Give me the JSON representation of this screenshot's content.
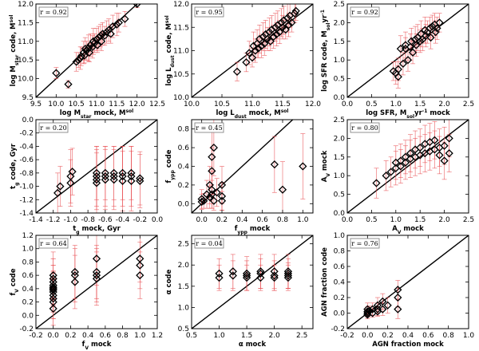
{
  "chart_data": [
    {
      "type": "scatter",
      "r_label": "r = 0.92",
      "xlabel": [
        "log M",
        "star",
        " mock, M",
        "sol",
        ""
      ],
      "ylabel": [
        "log M",
        "star",
        " code, M",
        "sol",
        ""
      ],
      "xlim": [
        9.5,
        12.5
      ],
      "ylim": [
        9.5,
        12.0
      ],
      "xticks": [
        9.5,
        10.0,
        10.5,
        11.0,
        11.5,
        12.0,
        12.5
      ],
      "yticks": [
        9.5,
        10.0,
        10.5,
        11.0,
        11.5,
        12.0
      ],
      "decimals": 1,
      "x": [
        10.0,
        10.3,
        10.5,
        10.55,
        10.6,
        10.62,
        10.68,
        10.7,
        10.72,
        10.75,
        10.8,
        10.82,
        10.85,
        10.9,
        10.92,
        10.95,
        11.0,
        11.02,
        11.05,
        11.1,
        11.12,
        11.15,
        11.2,
        11.25,
        11.3,
        11.35,
        11.4,
        11.5,
        11.55,
        11.7,
        12.0
      ],
      "y": [
        10.15,
        9.85,
        10.45,
        10.5,
        10.55,
        10.6,
        10.7,
        10.62,
        10.8,
        10.75,
        10.82,
        10.7,
        10.9,
        10.85,
        11.0,
        10.95,
        11.05,
        10.9,
        11.1,
        11.15,
        11.0,
        11.2,
        11.15,
        11.25,
        11.3,
        11.2,
        11.4,
        11.45,
        11.5,
        11.6,
        12.0
      ],
      "yerr": [
        0.15,
        0.1,
        0.25,
        0.2,
        0.3,
        0.25,
        0.3,
        0.2,
        0.3,
        0.25,
        0.35,
        0.25,
        0.3,
        0.3,
        0.35,
        0.25,
        0.3,
        0.2,
        0.3,
        0.3,
        0.25,
        0.3,
        0.25,
        0.3,
        0.3,
        0.25,
        0.3,
        0.3,
        0.25,
        0.2,
        0.1
      ]
    },
    {
      "type": "scatter",
      "r_label": "r = 0.95",
      "xlabel": [
        "log L",
        "dust",
        " mock, M",
        "sol",
        ""
      ],
      "ylabel": [
        "log L",
        "dust",
        " code, M",
        "sol",
        ""
      ],
      "xlim": [
        10.0,
        12.0
      ],
      "ylim": [
        10.0,
        12.0
      ],
      "xticks": [
        10.0,
        10.5,
        11.0,
        11.5,
        12.0
      ],
      "yticks": [
        10.0,
        10.5,
        11.0,
        11.5,
        12.0
      ],
      "decimals": 1,
      "x": [
        10.75,
        10.9,
        10.95,
        11.0,
        11.02,
        11.05,
        11.08,
        11.1,
        11.12,
        11.15,
        11.18,
        11.2,
        11.22,
        11.25,
        11.28,
        11.3,
        11.32,
        11.35,
        11.38,
        11.4,
        11.42,
        11.45,
        11.48,
        11.5,
        11.52,
        11.55,
        11.58,
        11.6,
        11.62,
        11.65,
        11.7,
        11.72
      ],
      "y": [
        10.55,
        10.75,
        10.95,
        10.85,
        11.1,
        11.0,
        11.15,
        11.05,
        11.25,
        11.1,
        11.3,
        11.15,
        11.35,
        11.25,
        11.4,
        11.2,
        11.45,
        11.3,
        11.5,
        11.35,
        11.55,
        11.4,
        11.6,
        11.5,
        11.65,
        11.45,
        11.7,
        11.55,
        11.75,
        11.6,
        11.8,
        11.85
      ],
      "yerr": [
        0.2,
        0.2,
        0.25,
        0.2,
        0.3,
        0.25,
        0.3,
        0.2,
        0.3,
        0.25,
        0.3,
        0.25,
        0.3,
        0.25,
        0.3,
        0.2,
        0.3,
        0.25,
        0.3,
        0.25,
        0.3,
        0.25,
        0.3,
        0.25,
        0.3,
        0.2,
        0.3,
        0.25,
        0.25,
        0.2,
        0.2,
        0.2
      ]
    },
    {
      "type": "scatter",
      "r_label": "r = 0.92",
      "xlabel": [
        "log SFR, M",
        "sol",
        "yr",
        "-1",
        " mock"
      ],
      "ylabel": [
        "log SFR code, M",
        "sol",
        "yr",
        "-1",
        ""
      ],
      "xlim": [
        0.0,
        2.5
      ],
      "ylim": [
        0.0,
        2.5
      ],
      "xticks": [
        0.0,
        0.5,
        1.0,
        1.5,
        2.0,
        2.5
      ],
      "yticks": [
        0.0,
        0.5,
        1.0,
        1.5,
        2.0,
        2.5
      ],
      "decimals": 1,
      "x": [
        0.95,
        1.0,
        1.05,
        1.1,
        1.15,
        1.2,
        1.25,
        1.3,
        1.32,
        1.35,
        1.4,
        1.42,
        1.45,
        1.5,
        1.52,
        1.55,
        1.6,
        1.62,
        1.65,
        1.7,
        1.72,
        1.75,
        1.8,
        1.82,
        1.85,
        1.9,
        1.05,
        1.2
      ],
      "y": [
        0.7,
        0.65,
        0.55,
        1.3,
        0.9,
        1.4,
        1.0,
        1.35,
        1.5,
        1.2,
        1.55,
        1.4,
        1.6,
        1.5,
        1.7,
        1.55,
        1.8,
        1.65,
        1.75,
        1.85,
        1.6,
        1.9,
        1.95,
        1.75,
        1.85,
        2.0,
        0.75,
        1.3
      ],
      "yerr": [
        0.25,
        0.3,
        0.3,
        0.35,
        0.3,
        0.35,
        0.3,
        0.35,
        0.35,
        0.3,
        0.35,
        0.3,
        0.35,
        0.3,
        0.35,
        0.3,
        0.35,
        0.3,
        0.3,
        0.3,
        0.3,
        0.3,
        0.3,
        0.3,
        0.3,
        0.25,
        0.3,
        0.3
      ]
    },
    {
      "type": "scatter",
      "r_label": "r = 0.20",
      "xlabel": [
        "t",
        "g",
        " mock, Gyr",
        "",
        ""
      ],
      "ylabel": [
        "t",
        "g",
        " code, Gyr",
        "",
        ""
      ],
      "xlim": [
        -1.4,
        0.0
      ],
      "ylim": [
        -1.4,
        0.0
      ],
      "xticks": [
        -1.4,
        -1.2,
        -1.0,
        -0.8,
        -0.6,
        -0.4,
        -0.2,
        0.0
      ],
      "yticks": [
        -1.4,
        -1.2,
        -1.0,
        -0.8,
        -0.6,
        -0.4,
        -0.2,
        0.0
      ],
      "decimals": 1,
      "x": [
        -1.15,
        -1.12,
        -1.0,
        -1.0,
        -0.98,
        -0.7,
        -0.7,
        -0.7,
        -0.7,
        -0.6,
        -0.6,
        -0.6,
        -0.5,
        -0.5,
        -0.5,
        -0.4,
        -0.4,
        -0.4,
        -0.3,
        -0.3,
        -0.3,
        -0.2,
        -0.2
      ],
      "y": [
        -1.1,
        -1.0,
        -0.95,
        -0.85,
        -0.78,
        -0.9,
        -0.85,
        -0.8,
        -0.95,
        -0.85,
        -0.8,
        -0.9,
        -0.85,
        -0.8,
        -0.9,
        -0.85,
        -0.8,
        -0.92,
        -0.85,
        -0.8,
        -0.92,
        -0.88,
        -0.92
      ],
      "yerr": [
        0.3,
        0.3,
        0.35,
        0.4,
        0.35,
        0.45,
        0.45,
        0.4,
        0.45,
        0.45,
        0.4,
        0.45,
        0.45,
        0.4,
        0.45,
        0.45,
        0.4,
        0.45,
        0.45,
        0.4,
        0.45,
        0.4,
        0.4
      ]
    },
    {
      "type": "scatter",
      "r_label": "r = 0.45",
      "xlabel": [
        "f",
        "ypp",
        " mock",
        "",
        ""
      ],
      "ylabel": [
        "f",
        "ypp",
        " code",
        "",
        ""
      ],
      "xlim": [
        -0.1,
        1.1
      ],
      "ylim": [
        -0.1,
        0.9
      ],
      "xticks": [
        0.0,
        0.2,
        0.4,
        0.6,
        0.8,
        1.0
      ],
      "yticks": [
        0.0,
        0.2,
        0.4,
        0.6,
        0.8
      ],
      "decimals": 1,
      "x": [
        0.0,
        0.0,
        0.02,
        0.05,
        0.08,
        0.08,
        0.1,
        0.1,
        0.12,
        0.1,
        0.15,
        0.1,
        0.2,
        0.2,
        0.2,
        0.12,
        0.72,
        0.8,
        1.0
      ],
      "y": [
        0.02,
        0.05,
        0.03,
        0.1,
        0.07,
        0.2,
        0.15,
        0.1,
        0.03,
        0.35,
        0.12,
        0.5,
        0.2,
        0.08,
        0.03,
        0.6,
        0.42,
        0.15,
        0.4
      ],
      "yerr": [
        0.08,
        0.1,
        0.08,
        0.15,
        0.12,
        0.2,
        0.2,
        0.15,
        0.1,
        0.25,
        0.15,
        0.3,
        0.2,
        0.15,
        0.1,
        0.3,
        0.3,
        0.3,
        0.35
      ]
    },
    {
      "type": "scatter",
      "r_label": "r = 0.80",
      "xlabel": [
        "A",
        "V",
        " mock",
        "",
        ""
      ],
      "ylabel": [
        "A",
        "V",
        " mock",
        "",
        ""
      ],
      "xlim": [
        0.0,
        2.5
      ],
      "ylim": [
        0.0,
        2.5
      ],
      "xticks": [
        0.0,
        0.5,
        1.0,
        1.5,
        2.0,
        2.5
      ],
      "yticks": [
        0.0,
        0.5,
        1.0,
        1.5,
        2.0,
        2.5
      ],
      "decimals": 1,
      "x": [
        0.6,
        0.8,
        0.9,
        1.0,
        1.0,
        1.1,
        1.1,
        1.2,
        1.2,
        1.3,
        1.3,
        1.4,
        1.4,
        1.5,
        1.5,
        1.6,
        1.6,
        1.7,
        1.7,
        1.8,
        1.8,
        1.9,
        1.9,
        2.0,
        2.0,
        2.1,
        2.1
      ],
      "y": [
        0.8,
        1.0,
        1.1,
        1.2,
        1.35,
        1.25,
        1.4,
        1.35,
        1.5,
        1.45,
        1.6,
        1.5,
        1.7,
        1.55,
        1.75,
        1.6,
        1.85,
        1.65,
        1.9,
        1.7,
        1.95,
        1.75,
        1.55,
        1.8,
        1.4,
        2.0,
        1.6
      ],
      "yerr": [
        0.4,
        0.4,
        0.4,
        0.45,
        0.45,
        0.45,
        0.45,
        0.45,
        0.45,
        0.5,
        0.5,
        0.5,
        0.5,
        0.5,
        0.5,
        0.5,
        0.5,
        0.5,
        0.5,
        0.5,
        0.5,
        0.5,
        0.5,
        0.5,
        0.5,
        0.5,
        0.5
      ]
    },
    {
      "type": "scatter",
      "r_label": "r = 0.64",
      "xlabel": [
        "f",
        "V",
        " mock",
        "",
        ""
      ],
      "ylabel": [
        "f",
        "V",
        " code",
        "",
        ""
      ],
      "xlim": [
        -0.2,
        1.2
      ],
      "ylim": [
        -0.2,
        1.2
      ],
      "xticks": [
        -0.2,
        0.0,
        0.2,
        0.4,
        0.6,
        0.8,
        1.0,
        1.2
      ],
      "yticks": [
        -0.2,
        0.0,
        0.2,
        0.4,
        0.6,
        0.8,
        1.0,
        1.2
      ],
      "decimals": 1,
      "x": [
        0.0,
        0.0,
        0.0,
        0.0,
        0.0,
        0.0,
        0.0,
        0.0,
        0.0,
        0.0,
        0.0,
        0.0,
        0.25,
        0.25,
        0.25,
        0.5,
        0.5,
        0.5,
        0.5,
        1.0,
        1.0,
        1.0
      ],
      "y": [
        0.1,
        0.2,
        0.25,
        0.3,
        0.35,
        0.4,
        0.45,
        0.5,
        0.55,
        0.6,
        0.38,
        0.42,
        0.5,
        0.6,
        0.65,
        0.55,
        0.6,
        0.65,
        0.85,
        0.6,
        0.75,
        0.85
      ],
      "yerr": [
        0.3,
        0.35,
        0.3,
        0.35,
        0.3,
        0.35,
        0.3,
        0.35,
        0.3,
        0.35,
        0.25,
        0.25,
        0.4,
        0.4,
        0.4,
        0.4,
        0.4,
        0.4,
        0.4,
        0.35,
        0.35,
        0.35
      ]
    },
    {
      "type": "scatter",
      "r_label": "r = 0.04",
      "xlabel": [
        "α mock",
        "",
        "",
        "",
        ""
      ],
      "ylabel": [
        "α code",
        "",
        "",
        "",
        ""
      ],
      "xlim": [
        0.5,
        2.7
      ],
      "ylim": [
        0.5,
        2.7
      ],
      "xticks": [
        0.5,
        1.0,
        1.5,
        2.0,
        2.5
      ],
      "yticks": [
        0.5,
        1.0,
        1.5,
        2.0,
        2.5
      ],
      "decimals": 1,
      "x": [
        1.0,
        1.0,
        1.25,
        1.25,
        1.5,
        1.5,
        1.5,
        1.75,
        1.75,
        1.75,
        2.0,
        2.0,
        2.0,
        2.25,
        2.25,
        2.25,
        2.25
      ],
      "y": [
        1.8,
        1.7,
        1.85,
        1.75,
        1.8,
        1.75,
        1.7,
        1.85,
        1.8,
        1.7,
        1.85,
        1.75,
        1.7,
        1.85,
        1.8,
        1.75,
        1.7
      ],
      "yerr": [
        0.35,
        0.3,
        0.4,
        0.35,
        0.4,
        0.35,
        0.3,
        0.4,
        0.35,
        0.3,
        0.4,
        0.35,
        0.3,
        0.4,
        0.35,
        0.3,
        0.3
      ]
    },
    {
      "type": "scatter",
      "r_label": "r = 0.76",
      "xlabel": [
        "AGN fraction mock",
        "",
        "",
        "",
        ""
      ],
      "ylabel": [
        "AGN fraction code",
        "",
        "",
        "",
        ""
      ],
      "xlim": [
        -0.2,
        1.0
      ],
      "ylim": [
        -0.2,
        1.0
      ],
      "xticks": [
        -0.2,
        0.0,
        0.2,
        0.4,
        0.6,
        0.8,
        1.0
      ],
      "yticks": [
        -0.2,
        0.0,
        0.2,
        0.4,
        0.6,
        0.8,
        1.0
      ],
      "decimals": 1,
      "x": [
        0.0,
        0.0,
        0.0,
        0.0,
        0.02,
        0.05,
        0.05,
        0.1,
        0.1,
        0.1,
        0.15,
        0.15,
        0.2,
        0.3,
        0.3,
        0.3
      ],
      "y": [
        0.0,
        0.02,
        0.05,
        -0.02,
        0.03,
        0.05,
        0.0,
        0.02,
        0.05,
        0.1,
        0.05,
        0.15,
        0.1,
        0.05,
        0.2,
        0.3
      ],
      "yerr": [
        0.05,
        0.06,
        0.08,
        0.05,
        0.06,
        0.08,
        0.05,
        0.06,
        0.08,
        0.1,
        0.08,
        0.1,
        0.1,
        0.12,
        0.12,
        0.12
      ]
    }
  ]
}
